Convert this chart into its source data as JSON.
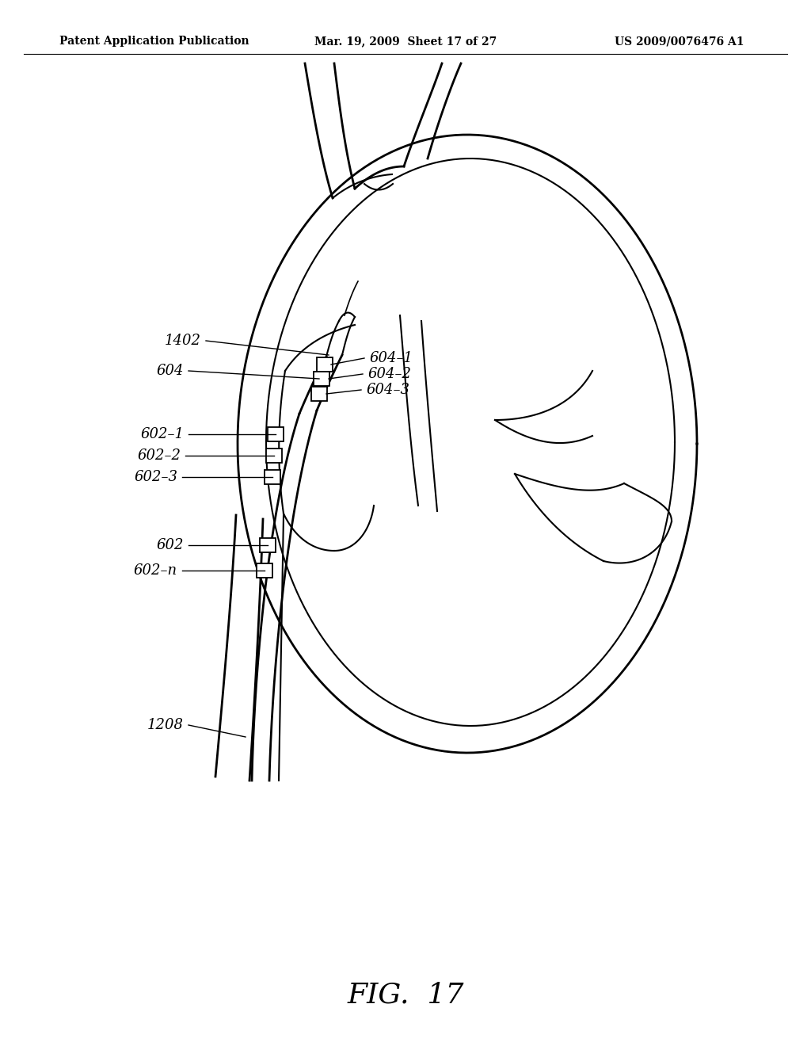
{
  "background_color": "#ffffff",
  "line_color": "#000000",
  "header_left": "Patent Application Publication",
  "header_mid": "Mar. 19, 2009  Sheet 17 of 27",
  "header_right": "US 2009/0076476 A1",
  "figure_label": "FIG.  17"
}
